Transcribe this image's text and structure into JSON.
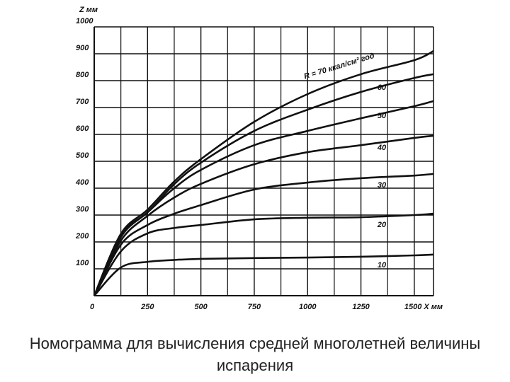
{
  "chart_data": {
    "type": "line",
    "caption": "Номограмма для вычисления средней многолетней величины испарения",
    "y_label": "Z мм",
    "x": [
      0,
      125,
      250,
      375,
      500,
      750,
      1000,
      1250,
      1500,
      1590
    ],
    "series": [
      {
        "name": "R = 70 ккал/см² год",
        "color": "#111111",
        "values": [
          0,
          230,
          320,
          425,
          508,
          647,
          750,
          824,
          876,
          910
        ]
      },
      {
        "name": "60",
        "color": "#111111",
        "values": [
          0,
          225,
          310,
          415,
          495,
          613,
          692,
          758,
          810,
          824
        ]
      },
      {
        "name": "50",
        "color": "#111111",
        "values": [
          0,
          218,
          310,
          400,
          468,
          560,
          613,
          660,
          705,
          724
        ]
      },
      {
        "name": "40",
        "color": "#111111",
        "values": [
          0,
          205,
          297,
          365,
          416,
          489,
          534,
          560,
          587,
          595
        ]
      },
      {
        "name": "30",
        "color": "#111111",
        "values": [
          0,
          190,
          263,
          305,
          337,
          395,
          421,
          437,
          447,
          453
        ]
      },
      {
        "name": "20",
        "color": "#111111",
        "values": [
          0,
          165,
          232,
          252,
          263,
          284,
          290,
          292,
          300,
          305
        ]
      },
      {
        "name": "10",
        "color": "#111111",
        "values": [
          0,
          105,
          126,
          133,
          137,
          140,
          142,
          145,
          150,
          153
        ]
      }
    ],
    "xlim": [
      0,
      1590
    ],
    "ylim": [
      0,
      1000
    ],
    "xticks": [
      0,
      250,
      500,
      750,
      1000,
      1250,
      {
        "value": 1500,
        "label": "1500 X мм"
      }
    ],
    "x_minor_grid": [
      125,
      375,
      625,
      875,
      1125,
      1375
    ],
    "yticks": [
      100,
      200,
      300,
      400,
      500,
      600,
      700,
      800,
      900,
      1000
    ],
    "grid": true
  }
}
